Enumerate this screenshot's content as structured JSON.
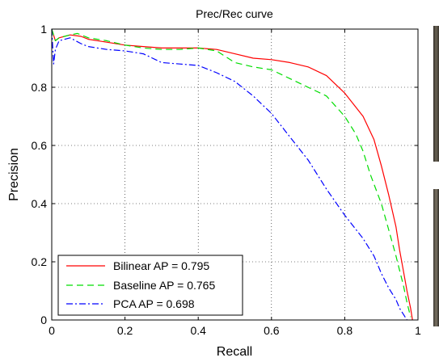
{
  "chart_data": {
    "type": "line",
    "title": "Prec/Rec curve",
    "xlabel": "Recall",
    "ylabel": "Precision",
    "xlim": [
      0,
      1
    ],
    "ylim": [
      0,
      1
    ],
    "xticks": [
      "0",
      "0.2",
      "0.4",
      "0.6",
      "0.8",
      "1"
    ],
    "yticks": [
      "0",
      "0.2",
      "0.4",
      "0.6",
      "0.8",
      "1"
    ],
    "grid": true,
    "legend_position": "bottom-left",
    "series": [
      {
        "name": "Bilinear AP = 0.795",
        "color": "#ff0000",
        "dash": "solid",
        "x": [
          0.0,
          0.01,
          0.02,
          0.05,
          0.08,
          0.1,
          0.15,
          0.2,
          0.25,
          0.3,
          0.35,
          0.4,
          0.45,
          0.5,
          0.55,
          0.6,
          0.65,
          0.7,
          0.75,
          0.8,
          0.85,
          0.88,
          0.9,
          0.92,
          0.94,
          0.95,
          0.96,
          0.97,
          0.98,
          0.985
        ],
        "y": [
          1.0,
          0.96,
          0.97,
          0.98,
          0.975,
          0.965,
          0.955,
          0.945,
          0.94,
          0.935,
          0.935,
          0.935,
          0.93,
          0.915,
          0.9,
          0.895,
          0.885,
          0.87,
          0.84,
          0.78,
          0.7,
          0.62,
          0.53,
          0.43,
          0.32,
          0.24,
          0.17,
          0.1,
          0.04,
          0.0
        ]
      },
      {
        "name": "Baseline AP = 0.765",
        "color": "#00dd00",
        "dash": "dashed",
        "x": [
          0.0,
          0.01,
          0.02,
          0.05,
          0.07,
          0.1,
          0.15,
          0.2,
          0.25,
          0.3,
          0.35,
          0.4,
          0.45,
          0.5,
          0.55,
          0.6,
          0.65,
          0.7,
          0.75,
          0.8,
          0.83,
          0.85,
          0.87,
          0.9,
          0.92,
          0.94,
          0.95,
          0.96,
          0.97,
          0.98
        ],
        "y": [
          1.0,
          0.96,
          0.97,
          0.98,
          0.985,
          0.97,
          0.96,
          0.945,
          0.935,
          0.93,
          0.93,
          0.935,
          0.925,
          0.885,
          0.87,
          0.86,
          0.83,
          0.8,
          0.77,
          0.7,
          0.64,
          0.58,
          0.5,
          0.4,
          0.31,
          0.22,
          0.17,
          0.12,
          0.06,
          0.01
        ]
      },
      {
        "name": "PCA AP = 0.698",
        "color": "#0000ff",
        "dash": "dashdot",
        "x": [
          0.0,
          0.005,
          0.01,
          0.02,
          0.05,
          0.08,
          0.1,
          0.15,
          0.2,
          0.25,
          0.3,
          0.35,
          0.4,
          0.45,
          0.5,
          0.55,
          0.6,
          0.65,
          0.7,
          0.75,
          0.8,
          0.85,
          0.88,
          0.9,
          0.92,
          0.94,
          0.95,
          0.96,
          0.97
        ],
        "y": [
          1.0,
          0.88,
          0.93,
          0.96,
          0.97,
          0.95,
          0.94,
          0.93,
          0.925,
          0.915,
          0.885,
          0.88,
          0.875,
          0.85,
          0.82,
          0.77,
          0.71,
          0.63,
          0.55,
          0.45,
          0.36,
          0.28,
          0.22,
          0.16,
          0.11,
          0.07,
          0.04,
          0.02,
          0.0
        ]
      }
    ]
  }
}
